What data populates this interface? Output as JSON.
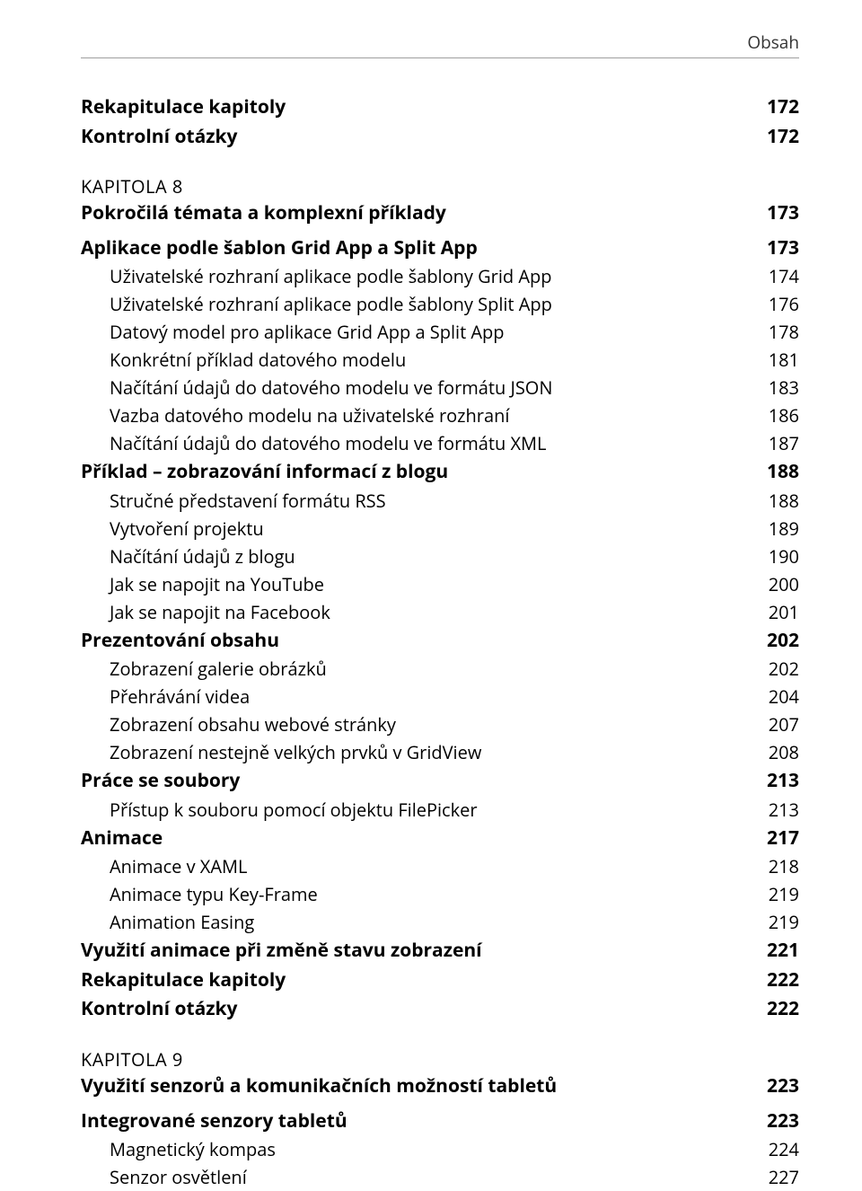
{
  "header": "Obsah",
  "entries": [
    {
      "type": "row",
      "label": "Rekapitulace kapitoly",
      "page": "172",
      "bold": true,
      "size": "title",
      "indent": 0
    },
    {
      "type": "row",
      "label": "Kontrolní otázky",
      "page": "172",
      "bold": true,
      "size": "title",
      "indent": 0
    },
    {
      "type": "kapitola",
      "label": "KAPITOLA 8"
    },
    {
      "type": "row",
      "label": "Pokročilá témata a komplexní příklady",
      "page": "173",
      "bold": true,
      "size": "title",
      "indent": 0,
      "chaptitle": true
    },
    {
      "type": "row",
      "label": "Aplikace podle šablon Grid App a Split App",
      "page": "173",
      "bold": true,
      "size": "title",
      "indent": 0
    },
    {
      "type": "row",
      "label": "Uživatelské rozhraní aplikace podle šablony Grid App",
      "page": "174",
      "bold": false,
      "size": "body",
      "indent": 1
    },
    {
      "type": "row",
      "label": "Uživatelské rozhraní aplikace podle šablony Split App",
      "page": "176",
      "bold": false,
      "size": "body",
      "indent": 1
    },
    {
      "type": "row",
      "label": "Datový model pro aplikace Grid App a Split App",
      "page": "178",
      "bold": false,
      "size": "body",
      "indent": 1
    },
    {
      "type": "row",
      "label": "Konkrétní příklad datového modelu",
      "page": "181",
      "bold": false,
      "size": "body",
      "indent": 1
    },
    {
      "type": "row",
      "label": "Načítání údajů do datového modelu ve formátu JSON",
      "page": "183",
      "bold": false,
      "size": "body",
      "indent": 1
    },
    {
      "type": "row",
      "label": "Vazba datového modelu na uživatelské rozhraní",
      "page": "186",
      "bold": false,
      "size": "body",
      "indent": 1
    },
    {
      "type": "row",
      "label": "Načítání údajů do datového modelu ve formátu XML",
      "page": "187",
      "bold": false,
      "size": "body",
      "indent": 1
    },
    {
      "type": "row",
      "label": "Příklad – zobrazování informací z blogu",
      "page": "188",
      "bold": true,
      "size": "title",
      "indent": 0
    },
    {
      "type": "row",
      "label": "Stručné představení formátu RSS",
      "page": "188",
      "bold": false,
      "size": "body",
      "indent": 1
    },
    {
      "type": "row",
      "label": "Vytvoření projektu",
      "page": "189",
      "bold": false,
      "size": "body",
      "indent": 1
    },
    {
      "type": "row",
      "label": "Načítání údajů z blogu",
      "page": "190",
      "bold": false,
      "size": "body",
      "indent": 1
    },
    {
      "type": "row",
      "label": "Jak se napojit na YouTube",
      "page": "200",
      "bold": false,
      "size": "body",
      "indent": 1
    },
    {
      "type": "row",
      "label": "Jak se napojit na Facebook",
      "page": "201",
      "bold": false,
      "size": "body",
      "indent": 1
    },
    {
      "type": "row",
      "label": "Prezentování obsahu",
      "page": "202",
      "bold": true,
      "size": "title",
      "indent": 0
    },
    {
      "type": "row",
      "label": "Zobrazení galerie obrázků",
      "page": "202",
      "bold": false,
      "size": "body",
      "indent": 1
    },
    {
      "type": "row",
      "label": "Přehrávání videa",
      "page": "204",
      "bold": false,
      "size": "body",
      "indent": 1
    },
    {
      "type": "row",
      "label": "Zobrazení obsahu webové stránky",
      "page": "207",
      "bold": false,
      "size": "body",
      "indent": 1
    },
    {
      "type": "row",
      "label": "Zobrazení nestejně velkých prvků v GridView",
      "page": "208",
      "bold": false,
      "size": "body",
      "indent": 1
    },
    {
      "type": "row",
      "label": "Práce se soubory",
      "page": "213",
      "bold": true,
      "size": "title",
      "indent": 0
    },
    {
      "type": "row",
      "label": "Přístup k souboru pomocí objektu FilePicker",
      "page": "213",
      "bold": false,
      "size": "body",
      "indent": 1
    },
    {
      "type": "row",
      "label": "Animace",
      "page": "217",
      "bold": true,
      "size": "title",
      "indent": 0
    },
    {
      "type": "row",
      "label": "Animace v XAML",
      "page": "218",
      "bold": false,
      "size": "body",
      "indent": 1
    },
    {
      "type": "row",
      "label": "Animace typu Key-Frame",
      "page": "219",
      "bold": false,
      "size": "body",
      "indent": 1
    },
    {
      "type": "row",
      "label": "Animation Easing",
      "page": "219",
      "bold": false,
      "size": "body",
      "indent": 1
    },
    {
      "type": "row",
      "label": "Využití animace při změně stavu zobrazení",
      "page": "221",
      "bold": true,
      "size": "title",
      "indent": 0
    },
    {
      "type": "row",
      "label": "Rekapitulace kapitoly",
      "page": "222",
      "bold": true,
      "size": "title",
      "indent": 0
    },
    {
      "type": "row",
      "label": "Kontrolní otázky",
      "page": "222",
      "bold": true,
      "size": "title",
      "indent": 0
    },
    {
      "type": "kapitola",
      "label": "KAPITOLA 9"
    },
    {
      "type": "row",
      "label": "Využití senzorů a komunikačních možností tabletů",
      "page": "223",
      "bold": true,
      "size": "title",
      "indent": 0,
      "chaptitle": true
    },
    {
      "type": "row",
      "label": "Integrované senzory tabletů",
      "page": "223",
      "bold": true,
      "size": "title",
      "indent": 0
    },
    {
      "type": "row",
      "label": "Magnetický kompas",
      "page": "224",
      "bold": false,
      "size": "body",
      "indent": 1
    },
    {
      "type": "row",
      "label": "Senzor osvětlení",
      "page": "227",
      "bold": false,
      "size": "body",
      "indent": 1
    }
  ]
}
